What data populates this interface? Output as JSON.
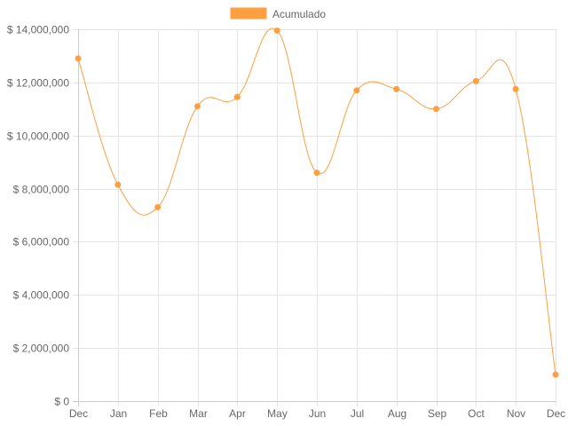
{
  "chart_data": {
    "type": "line",
    "categories": [
      "Dec",
      "Jan",
      "Feb",
      "Mar",
      "Apr",
      "May",
      "Jun",
      "Jul",
      "Aug",
      "Sep",
      "Oct",
      "Nov",
      "Dec"
    ],
    "series": [
      {
        "name": "Acumulado",
        "color": "#ff9f40",
        "values": [
          12900000,
          8150000,
          7300000,
          11100000,
          11450000,
          13950000,
          8600000,
          11700000,
          11750000,
          11000000,
          12050000,
          11750000,
          1000000
        ]
      }
    ],
    "y_ticks": [
      "$ 0",
      "$ 2,000,000",
      "$ 4,000,000",
      "$ 6,000,000",
      "$ 8,000,000",
      "$ 10,000,000",
      "$ 12,000,000",
      "$ 14,000,000"
    ],
    "ylim": [
      0,
      14000000
    ],
    "grid": true,
    "legend_position": "top-center",
    "smooth": true
  }
}
